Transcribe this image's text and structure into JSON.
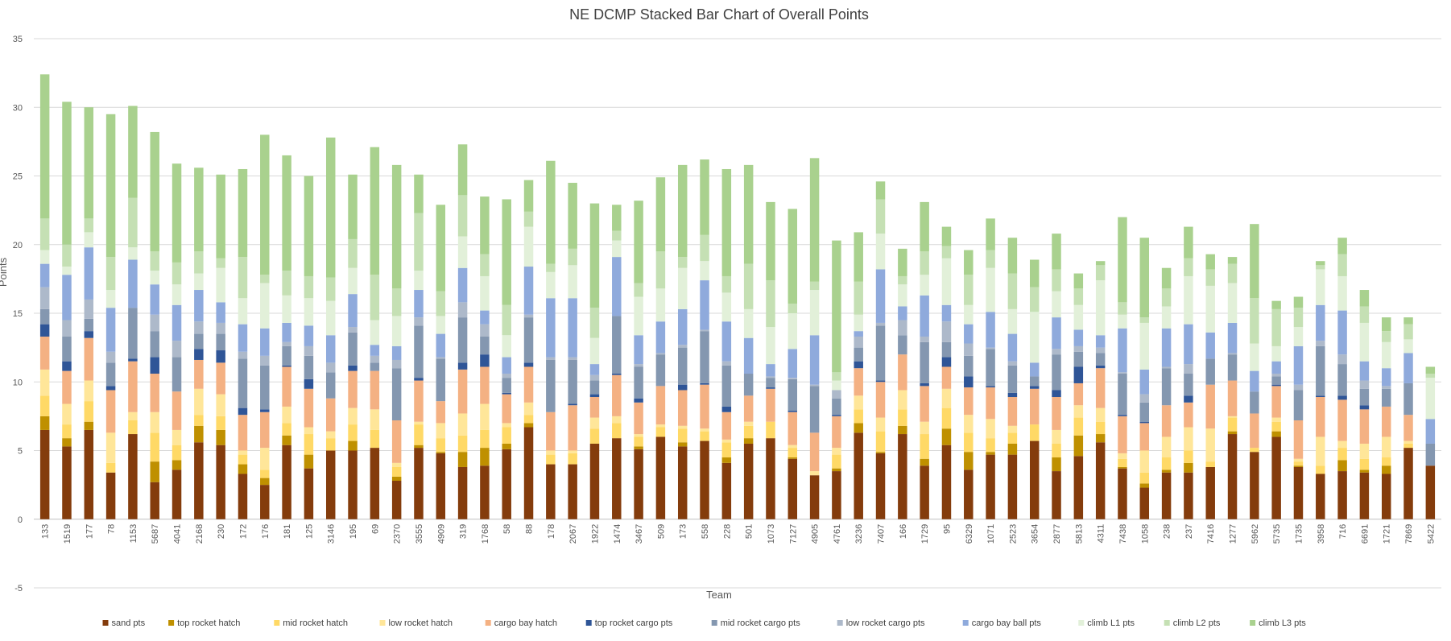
{
  "chart_data": {
    "type": "bar",
    "stacked": true,
    "title": "NE DCMP Stacked Bar Chart of Overall Points",
    "xlabel": "Team",
    "ylabel": "Points",
    "ylim": [
      -5,
      35
    ],
    "yticks": [
      -5,
      0,
      5,
      10,
      15,
      20,
      25,
      30,
      35
    ],
    "grid": true,
    "legend_position": "bottom",
    "categories": [
      "133",
      "1519",
      "177",
      "78",
      "1153",
      "5687",
      "4041",
      "2168",
      "230",
      "172",
      "176",
      "181",
      "125",
      "3146",
      "195",
      "69",
      "2370",
      "3555",
      "4909",
      "319",
      "1768",
      "58",
      "88",
      "178",
      "2067",
      "1922",
      "1474",
      "3467",
      "509",
      "173",
      "558",
      "228",
      "501",
      "1073",
      "7127",
      "4905",
      "4761",
      "3236",
      "7407",
      "166",
      "1729",
      "95",
      "6329",
      "1071",
      "2523",
      "3654",
      "2877",
      "5813",
      "4311",
      "7438",
      "1058",
      "238",
      "237",
      "7416",
      "1277",
      "5962",
      "5735",
      "1735",
      "3958",
      "716",
      "6691",
      "1721",
      "7869",
      "5422"
    ],
    "series": [
      {
        "name": "sand pts",
        "color": "#843c0c",
        "values": [
          6.5,
          5.3,
          6.5,
          3.4,
          6.2,
          2.7,
          3.6,
          5.6,
          5.4,
          3.3,
          2.5,
          5.4,
          3.7,
          5.0,
          5.0,
          5.2,
          2.8,
          5.2,
          4.8,
          3.8,
          3.9,
          5.1,
          6.7,
          4.0,
          4.0,
          5.5,
          5.9,
          5.1,
          6.0,
          5.3,
          5.7,
          4.1,
          5.5,
          5.9,
          4.4,
          3.2,
          3.5,
          6.3,
          4.8,
          6.2,
          3.9,
          5.4,
          3.6,
          4.7,
          4.7,
          5.7,
          3.5,
          4.6,
          5.6,
          3.7,
          2.3,
          3.4,
          3.4,
          3.8,
          6.2,
          4.9,
          6.0,
          3.8,
          3.3,
          3.5,
          3.4,
          3.3,
          5.2,
          3.9
        ]
      },
      {
        "name": "top rocket hatch",
        "color": "#bf9000",
        "values": [
          1.0,
          0.6,
          0.6,
          0.0,
          0.0,
          1.5,
          0.7,
          1.2,
          1.1,
          0.7,
          0.5,
          0.7,
          1.0,
          0.0,
          0.7,
          0.0,
          0.3,
          0.2,
          0.1,
          1.1,
          1.3,
          0.4,
          0.3,
          0.0,
          0.0,
          0.0,
          0.0,
          0.2,
          0.0,
          0.3,
          0.0,
          0.4,
          0.4,
          0.0,
          0.1,
          0.0,
          0.2,
          0.7,
          0.1,
          0.6,
          0.5,
          1.2,
          1.3,
          0.2,
          0.8,
          0.0,
          1.0,
          1.5,
          0.6,
          0.1,
          0.3,
          0.2,
          0.7,
          0.0,
          0.2,
          0.0,
          0.4,
          0.1,
          0.0,
          0.8,
          0.2,
          0.6,
          0.0,
          0.0
        ]
      },
      {
        "name": "mid rocket hatch",
        "color": "#ffd966",
        "values": [
          1.5,
          1.0,
          1.5,
          0.7,
          1.0,
          2.1,
          1.1,
          0.8,
          1.0,
          0.7,
          0.6,
          0.9,
          1.5,
          0.9,
          1.2,
          1.3,
          0.7,
          1.5,
          1.0,
          1.2,
          1.3,
          1.2,
          0.6,
          0.7,
          0.8,
          1.1,
          1.1,
          0.7,
          0.7,
          1.0,
          0.7,
          1.1,
          0.9,
          1.2,
          0.7,
          0.0,
          1.0,
          1.0,
          1.5,
          1.2,
          1.8,
          1.5,
          1.4,
          1.0,
          0.8,
          1.2,
          1.0,
          1.3,
          0.9,
          0.6,
          0.8,
          0.9,
          0.9,
          0.4,
          1.0,
          0.3,
          0.7,
          0.3,
          0.6,
          0.9,
          0.8,
          0.6,
          0.3,
          0.0
        ]
      },
      {
        "name": "low rocket hatch",
        "color": "#ffe699",
        "values": [
          1.9,
          1.5,
          1.5,
          2.2,
          0.6,
          1.5,
          1.1,
          1.9,
          1.6,
          0.3,
          1.6,
          1.2,
          0.5,
          0.5,
          1.2,
          1.5,
          0.3,
          0.2,
          1.1,
          1.6,
          1.9,
          0.3,
          0.9,
          0.3,
          0.2,
          0.8,
          0.5,
          0.2,
          0.2,
          0.2,
          0.2,
          0.2,
          0.3,
          0.0,
          0.2,
          0.3,
          0.5,
          1.0,
          1.0,
          1.4,
          0.9,
          1.4,
          1.3,
          1.4,
          0.5,
          0.0,
          1.0,
          0.9,
          1.0,
          0.4,
          1.6,
          1.5,
          1.7,
          2.4,
          0.1,
          0.0,
          0.3,
          0.2,
          2.1,
          0.5,
          1.1,
          1.5,
          0.2,
          0.0
        ]
      },
      {
        "name": "cargo bay hatch",
        "color": "#f4b183",
        "values": [
          2.4,
          2.4,
          3.1,
          3.1,
          3.7,
          2.8,
          2.8,
          2.1,
          2.3,
          2.6,
          2.6,
          2.9,
          2.8,
          2.4,
          2.7,
          2.8,
          3.1,
          3.0,
          1.6,
          3.2,
          2.7,
          2.1,
          2.6,
          2.8,
          3.3,
          1.5,
          3.0,
          2.3,
          2.8,
          2.6,
          3.2,
          2.0,
          1.9,
          2.4,
          2.4,
          2.8,
          2.3,
          2.0,
          2.6,
          2.6,
          2.6,
          1.6,
          2.0,
          2.3,
          2.1,
          2.6,
          2.4,
          1.6,
          2.9,
          2.7,
          2.0,
          2.3,
          1.8,
          3.2,
          2.6,
          2.5,
          2.3,
          2.8,
          2.9,
          3.0,
          2.5,
          2.2,
          1.9,
          0.0
        ]
      },
      {
        "name": "top rocket cargo pts",
        "color": "#2f5597",
        "values": [
          0.9,
          0.7,
          0.5,
          0.3,
          0.2,
          1.2,
          0.0,
          0.8,
          0.9,
          0.5,
          0.2,
          0.1,
          0.7,
          0.0,
          0.4,
          0.0,
          0.0,
          0.2,
          0.0,
          0.5,
          0.9,
          0.1,
          0.3,
          0.0,
          0.1,
          0.2,
          0.1,
          0.3,
          0.0,
          0.4,
          0.1,
          0.4,
          0.0,
          0.1,
          0.1,
          0.0,
          0.1,
          0.5,
          0.1,
          0.0,
          0.2,
          0.7,
          0.8,
          0.1,
          0.3,
          0.2,
          0.5,
          1.2,
          0.2,
          0.1,
          0.1,
          0.0,
          0.5,
          0.0,
          0.0,
          0.0,
          0.1,
          0.0,
          0.1,
          0.3,
          0.3,
          0.0,
          0.0,
          0.0
        ]
      },
      {
        "name": "mid rocket cargo pts",
        "color": "#8497b0",
        "values": [
          1.1,
          1.8,
          0.9,
          1.7,
          3.7,
          1.9,
          2.5,
          1.1,
          1.2,
          3.6,
          3.2,
          1.4,
          1.7,
          1.9,
          2.4,
          0.6,
          3.8,
          3.8,
          3.1,
          3.3,
          1.3,
          1.1,
          3.3,
          3.8,
          3.2,
          1.0,
          4.2,
          2.3,
          2.3,
          2.7,
          3.8,
          3.0,
          1.6,
          0.7,
          2.3,
          3.4,
          1.2,
          1.0,
          4.0,
          1.4,
          3.0,
          1.1,
          1.5,
          2.7,
          2.0,
          0.7,
          2.6,
          1.1,
          0.9,
          3.0,
          1.4,
          2.7,
          1.6,
          1.9,
          1.9,
          1.6,
          0.6,
          2.2,
          3.6,
          2.3,
          1.2,
          1.3,
          2.3,
          1.6
        ]
      },
      {
        "name": "low rocket cargo pts",
        "color": "#adb9ca",
        "values": [
          1.6,
          1.2,
          1.4,
          0.8,
          0.0,
          1.2,
          1.2,
          0.9,
          0.8,
          0.5,
          0.7,
          0.3,
          0.7,
          0.7,
          0.4,
          0.5,
          0.6,
          0.6,
          0.1,
          1.1,
          0.9,
          0.3,
          0.2,
          0.2,
          0.2,
          0.4,
          0.0,
          0.2,
          0.1,
          0.2,
          0.1,
          0.3,
          0.0,
          0.1,
          0.1,
          0.1,
          0.6,
          0.8,
          0.2,
          1.1,
          0.4,
          1.5,
          0.9,
          0.1,
          0.3,
          0.0,
          0.4,
          0.4,
          0.4,
          0.1,
          0.6,
          0.1,
          0.7,
          0.0,
          0.1,
          0.0,
          0.2,
          0.4,
          0.4,
          0.7,
          0.6,
          0.2,
          0.0,
          0.0
        ]
      },
      {
        "name": "cargo bay ball pts",
        "color": "#8faadc",
        "values": [
          1.7,
          3.3,
          3.8,
          3.2,
          3.5,
          2.2,
          2.6,
          2.3,
          1.5,
          2.0,
          2.0,
          1.4,
          1.5,
          2.0,
          2.4,
          0.8,
          1.0,
          2.0,
          1.7,
          2.5,
          1.0,
          1.2,
          3.5,
          4.3,
          4.3,
          0.8,
          4.3,
          2.1,
          2.3,
          2.6,
          3.6,
          2.9,
          2.6,
          0.9,
          2.1,
          3.6,
          0.0,
          0.4,
          3.9,
          1.0,
          3.0,
          1.2,
          1.4,
          2.6,
          2.0,
          1.0,
          2.3,
          1.2,
          0.9,
          3.2,
          1.8,
          2.8,
          2.9,
          1.9,
          2.2,
          1.5,
          0.9,
          2.8,
          2.6,
          3.2,
          1.4,
          1.3,
          2.2,
          1.8
        ]
      },
      {
        "name": "climb L1 pts",
        "color": "#e2f0d9",
        "values": [
          1.0,
          0.6,
          1.1,
          1.3,
          0.9,
          1.0,
          1.5,
          1.2,
          2.5,
          1.9,
          3.3,
          2.0,
          2.0,
          2.5,
          1.9,
          1.8,
          2.2,
          1.4,
          1.3,
          2.3,
          2.5,
          1.6,
          2.9,
          1.9,
          2.4,
          1.9,
          1.2,
          2.8,
          2.4,
          3.0,
          1.4,
          2.1,
          2.1,
          2.7,
          2.6,
          3.3,
          0.7,
          1.2,
          2.6,
          1.6,
          1.5,
          3.4,
          1.4,
          3.2,
          1.8,
          3.7,
          1.9,
          1.8,
          4.0,
          1.0,
          3.4,
          1.6,
          3.5,
          3.4,
          2.9,
          2.0,
          1.1,
          1.4,
          2.6,
          2.5,
          2.8,
          1.9,
          1.0,
          3.0
        ]
      },
      {
        "name": "climb L2 pts",
        "color": "#c5e0b4",
        "values": [
          2.3,
          1.6,
          1.0,
          2.4,
          3.6,
          1.4,
          1.6,
          1.6,
          0.7,
          3.0,
          0.6,
          1.8,
          1.6,
          1.7,
          2.1,
          3.3,
          2.0,
          4.2,
          1.8,
          3.0,
          1.6,
          2.2,
          1.1,
          0.6,
          1.2,
          2.2,
          0.7,
          1.0,
          2.7,
          0.8,
          1.9,
          1.2,
          3.3,
          3.4,
          0.7,
          0.6,
          0.6,
          2.4,
          2.5,
          0.6,
          1.7,
          0.9,
          2.2,
          1.3,
          2.6,
          1.8,
          1.6,
          1.2,
          1.1,
          0.9,
          0.4,
          1.3,
          1.3,
          1.2,
          1.4,
          3.3,
          2.7,
          1.4,
          0.3,
          1.6,
          1.2,
          0.8,
          1.1,
          0.3
        ]
      },
      {
        "name": "climb L3 pts",
        "color": "#a9d18e",
        "values": [
          10.5,
          10.4,
          8.1,
          10.4,
          6.7,
          8.7,
          7.2,
          6.1,
          6.1,
          6.4,
          10.2,
          8.4,
          7.3,
          10.2,
          4.7,
          9.3,
          9.0,
          2.8,
          6.3,
          3.7,
          4.2,
          7.7,
          2.3,
          7.5,
          4.8,
          7.6,
          1.9,
          6.0,
          5.4,
          6.7,
          5.5,
          7.8,
          7.2,
          5.7,
          6.9,
          9.0,
          9.6,
          3.6,
          1.3,
          2.0,
          3.6,
          1.4,
          1.8,
          2.3,
          2.6,
          2.0,
          2.6,
          1.1,
          0.3,
          6.2,
          5.8,
          1.5,
          2.3,
          1.1,
          0.5,
          5.4,
          0.6,
          0.8,
          0.3,
          1.2,
          1.2,
          1.0,
          0.5,
          0.5
        ]
      }
    ]
  }
}
